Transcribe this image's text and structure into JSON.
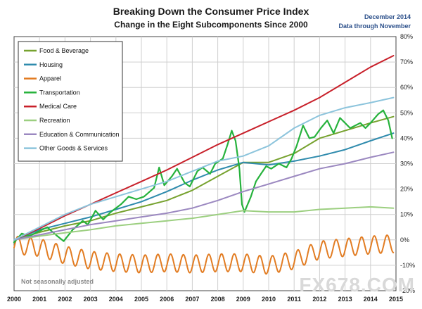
{
  "chart_data": {
    "type": "line",
    "title": "Breaking Down the Consumer Price Index",
    "subtitle": "Change in the Eight Subcomponents  Since 2000",
    "note_date": "December 2014",
    "note_through": "Data through November",
    "footnote": "Not seasonally adjusted",
    "watermark": "FX678.COM",
    "x_start": 2000,
    "x_end": 2015,
    "x_ticks": [
      "2000",
      "2001",
      "2002",
      "2003",
      "2004",
      "2005",
      "2006",
      "2007",
      "2008",
      "2009",
      "2010",
      "2011",
      "2012",
      "2013",
      "2014",
      "2015"
    ],
    "ylim": [
      -20,
      80
    ],
    "y_ticks": [
      "-20%",
      "-10%",
      "0%",
      "10%",
      "20%",
      "30%",
      "40%",
      "50%",
      "60%",
      "70%",
      "80%"
    ],
    "grid": true,
    "legend_position": "top-left",
    "series": [
      {
        "name": "Food & Beverage",
        "color": "#77a22f",
        "points": [
          [
            2000,
            0
          ],
          [
            2001,
            3
          ],
          [
            2002,
            5.5
          ],
          [
            2003,
            7.5
          ],
          [
            2004,
            10.5
          ],
          [
            2005,
            13
          ],
          [
            2006,
            15.5
          ],
          [
            2007,
            19.5
          ],
          [
            2008,
            25
          ],
          [
            2009,
            30.5
          ],
          [
            2010,
            30.5
          ],
          [
            2011,
            34
          ],
          [
            2012,
            40
          ],
          [
            2013,
            43
          ],
          [
            2014,
            46
          ],
          [
            2014.9,
            48.5
          ]
        ]
      },
      {
        "name": "Housing",
        "color": "#2f8bad",
        "points": [
          [
            2000,
            0
          ],
          [
            2001,
            4
          ],
          [
            2002,
            6.5
          ],
          [
            2003,
            9
          ],
          [
            2004,
            12
          ],
          [
            2005,
            15
          ],
          [
            2006,
            19
          ],
          [
            2007,
            23.5
          ],
          [
            2008,
            27.5
          ],
          [
            2009,
            30.5
          ],
          [
            2010,
            29.5
          ],
          [
            2011,
            31
          ],
          [
            2012,
            33
          ],
          [
            2013,
            35.5
          ],
          [
            2014,
            39
          ],
          [
            2014.9,
            42
          ]
        ]
      },
      {
        "name": "Apparel",
        "color": "#e27c22",
        "wave": {
          "amp": 3.5,
          "period": 0.5,
          "phase": 0.15
        },
        "points": [
          [
            2000,
            -2
          ],
          [
            2001,
            -3
          ],
          [
            2002,
            -6
          ],
          [
            2003,
            -8
          ],
          [
            2004,
            -9
          ],
          [
            2005,
            -9.5
          ],
          [
            2006,
            -9
          ],
          [
            2007,
            -9.5
          ],
          [
            2008,
            -9
          ],
          [
            2009,
            -9
          ],
          [
            2010,
            -10
          ],
          [
            2011,
            -8
          ],
          [
            2012,
            -4
          ],
          [
            2013,
            -3
          ],
          [
            2014,
            -2
          ],
          [
            2014.9,
            -1.5
          ]
        ]
      },
      {
        "name": "Transportation",
        "color": "#26b23c",
        "points": [
          [
            2000,
            -1
          ],
          [
            2000.3,
            2.5
          ],
          [
            2000.6,
            1.5
          ],
          [
            2000.9,
            3
          ],
          [
            2001.3,
            5
          ],
          [
            2001.7,
            1.5
          ],
          [
            2001.95,
            -0.5
          ],
          [
            2002.3,
            4
          ],
          [
            2002.7,
            7.5
          ],
          [
            2002.9,
            6
          ],
          [
            2003.2,
            11.5
          ],
          [
            2003.5,
            8
          ],
          [
            2003.8,
            11
          ],
          [
            2004.2,
            14
          ],
          [
            2004.5,
            17
          ],
          [
            2004.8,
            16
          ],
          [
            2005.1,
            17
          ],
          [
            2005.5,
            20.5
          ],
          [
            2005.7,
            28.5
          ],
          [
            2005.9,
            21.5
          ],
          [
            2006.2,
            25
          ],
          [
            2006.4,
            28
          ],
          [
            2006.7,
            22.5
          ],
          [
            2006.9,
            21
          ],
          [
            2007.2,
            27
          ],
          [
            2007.4,
            28.5
          ],
          [
            2007.7,
            26
          ],
          [
            2007.9,
            30
          ],
          [
            2008.2,
            32
          ],
          [
            2008.4,
            38
          ],
          [
            2008.55,
            43
          ],
          [
            2008.7,
            39
          ],
          [
            2008.85,
            28
          ],
          [
            2008.95,
            14
          ],
          [
            2009.05,
            11
          ],
          [
            2009.3,
            17
          ],
          [
            2009.5,
            23
          ],
          [
            2009.7,
            26
          ],
          [
            2009.9,
            29
          ],
          [
            2010.1,
            28
          ],
          [
            2010.4,
            30
          ],
          [
            2010.7,
            28.5
          ],
          [
            2010.9,
            32
          ],
          [
            2011.1,
            37
          ],
          [
            2011.35,
            45
          ],
          [
            2011.6,
            40
          ],
          [
            2011.8,
            40.5
          ],
          [
            2012.05,
            44
          ],
          [
            2012.3,
            47
          ],
          [
            2012.55,
            42
          ],
          [
            2012.8,
            48
          ],
          [
            2013.0,
            46
          ],
          [
            2013.2,
            44
          ],
          [
            2013.4,
            45
          ],
          [
            2013.6,
            46
          ],
          [
            2013.8,
            44
          ],
          [
            2014.0,
            46
          ],
          [
            2014.3,
            49.5
          ],
          [
            2014.5,
            51
          ],
          [
            2014.7,
            47
          ],
          [
            2014.85,
            40
          ]
        ]
      },
      {
        "name": "Medical Care",
        "color": "#c8202a",
        "points": [
          [
            2000,
            0
          ],
          [
            2001,
            4.5
          ],
          [
            2002,
            9.5
          ],
          [
            2003,
            14
          ],
          [
            2004,
            18.5
          ],
          [
            2005,
            23
          ],
          [
            2006,
            27.5
          ],
          [
            2007,
            32.5
          ],
          [
            2008,
            37.5
          ],
          [
            2009,
            42
          ],
          [
            2010,
            46.5
          ],
          [
            2011,
            51
          ],
          [
            2012,
            56
          ],
          [
            2013,
            62
          ],
          [
            2014,
            68
          ],
          [
            2014.9,
            72.5
          ]
        ]
      },
      {
        "name": "Recreation",
        "color": "#9ccf80",
        "points": [
          [
            2000,
            0
          ],
          [
            2001,
            1.5
          ],
          [
            2002,
            2.8
          ],
          [
            2003,
            4
          ],
          [
            2004,
            5.5
          ],
          [
            2005,
            6.5
          ],
          [
            2006,
            7.5
          ],
          [
            2007,
            8.5
          ],
          [
            2008,
            10
          ],
          [
            2009,
            11.5
          ],
          [
            2010,
            11
          ],
          [
            2011,
            11
          ],
          [
            2012,
            12
          ],
          [
            2013,
            12.5
          ],
          [
            2014,
            13
          ],
          [
            2014.9,
            12.5
          ]
        ]
      },
      {
        "name": "Education & Communication",
        "color": "#9b88c0",
        "points": [
          [
            2000,
            0
          ],
          [
            2001,
            2
          ],
          [
            2002,
            4
          ],
          [
            2003,
            6
          ],
          [
            2004,
            7.5
          ],
          [
            2005,
            9
          ],
          [
            2006,
            10.5
          ],
          [
            2007,
            12.5
          ],
          [
            2008,
            15.5
          ],
          [
            2009,
            19
          ],
          [
            2010,
            22
          ],
          [
            2011,
            25
          ],
          [
            2012,
            28
          ],
          [
            2013,
            30
          ],
          [
            2014,
            32.5
          ],
          [
            2014.9,
            34.5
          ]
        ]
      },
      {
        "name": "Other Goods & Services",
        "color": "#8cc4dc",
        "points": [
          [
            2000,
            0
          ],
          [
            2001,
            5
          ],
          [
            2002,
            10
          ],
          [
            2003,
            14
          ],
          [
            2004,
            17
          ],
          [
            2005,
            20
          ],
          [
            2006,
            23
          ],
          [
            2007,
            27
          ],
          [
            2008,
            31
          ],
          [
            2009,
            33
          ],
          [
            2010,
            37
          ],
          [
            2011,
            44
          ],
          [
            2012,
            49
          ],
          [
            2013,
            52
          ],
          [
            2014,
            54
          ],
          [
            2014.9,
            56
          ]
        ]
      }
    ]
  }
}
